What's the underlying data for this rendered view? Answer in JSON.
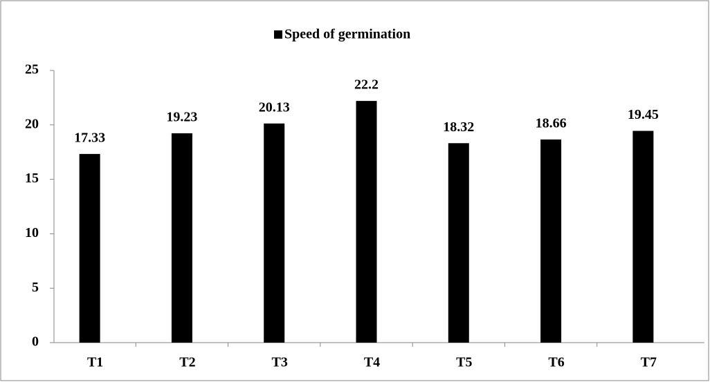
{
  "chart_data": {
    "type": "bar",
    "categories": [
      "T1",
      "T2",
      "T3",
      "T4",
      "T5",
      "T6",
      "T7"
    ],
    "series": [
      {
        "name": "Speed of germination",
        "color": "#000000",
        "values": [
          17.33,
          19.23,
          20.13,
          22.2,
          18.32,
          18.66,
          19.45
        ]
      }
    ],
    "ylim": [
      0,
      25
    ],
    "yticks": [
      0,
      5,
      10,
      15,
      20,
      25
    ],
    "grid": false,
    "legend": "top",
    "data_labels": true
  }
}
